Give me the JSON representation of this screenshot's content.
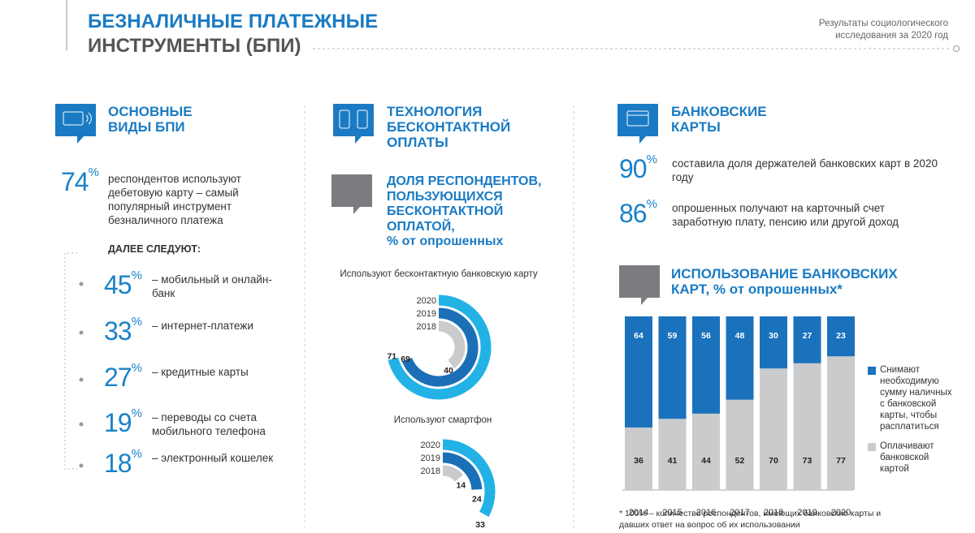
{
  "header": {
    "title": [
      "БЕЗНАЛИЧНЫЕ ПЛАТЕЖНЫЕ",
      "ИНСТРУМЕНТЫ (БПИ)"
    ],
    "source": [
      "Результаты социологического",
      "исследования за 2020 год"
    ]
  },
  "main_types": {
    "heading": [
      "ОСНОВНЫЕ",
      "ВИДЫ БПИ"
    ],
    "lead": {
      "value": 74,
      "unit": "%",
      "text": "респондентов используют дебетовую карту – самый популярный инструмент безналичного платежа"
    },
    "next_label": "ДАЛЕЕ СЛЕДУЮТ:",
    "items": [
      {
        "value": 45,
        "unit": "%",
        "text": "– мобильный и онлайн-банк"
      },
      {
        "value": 33,
        "unit": "%",
        "text": "– интернет-платежи"
      },
      {
        "value": 27,
        "unit": "%",
        "text": "– кредитные карты"
      },
      {
        "value": 19,
        "unit": "%",
        "text": "– переводы со счета мобильного телефона"
      },
      {
        "value": 18,
        "unit": "%",
        "text": "– электронный кошелек"
      }
    ]
  },
  "contactless": {
    "heading": [
      "ТЕХНОЛОГИЯ",
      "БЕСКОНТАКТНОЙ",
      "ОПЛАТЫ"
    ],
    "subheading": [
      "ДОЛЯ РЕСПОНДЕНТОВ,",
      "ПОЛЬЗУЮЩИХСЯ",
      "БЕСКОНТАКТНОЙ",
      "ОПЛАТОЙ,",
      "% от опрошенных"
    ]
  },
  "bank_cards": {
    "heading": [
      "БАНКОВСКИЕ",
      "КАРТЫ"
    ],
    "facts": [
      {
        "value": 90,
        "unit": "%",
        "text": "составила доля держателей банковских карт в 2020 году"
      },
      {
        "value": 86,
        "unit": "%",
        "text": "опрошенных получают на карточный счет заработную плату, пенсию или другой доход"
      }
    ],
    "footnote": "* 100% – количество респондентов, имеющих банковские карты и давших ответ на вопрос об их использовании"
  },
  "chart_data": [
    {
      "type": "radial_bar",
      "title": "Используют бесконтактную банковскую карту",
      "categories": [
        "2020",
        "2019",
        "2018"
      ],
      "values": [
        71,
        69,
        40
      ],
      "colors": [
        "#22b2e6",
        "#1b6fb7",
        "#c9cbcd"
      ]
    },
    {
      "type": "radial_bar",
      "title": "Используют смартфон",
      "categories": [
        "2020",
        "2019",
        "2018"
      ],
      "values": [
        33,
        24,
        14
      ],
      "colors": [
        "#22b2e6",
        "#1b6fb7",
        "#c9cbcd"
      ]
    },
    {
      "type": "bar",
      "stacked": true,
      "title": [
        "ИСПОЛЬЗОВАНИЕ БАНКОВСКИХ",
        "КАРТ, % от опрошенных*"
      ],
      "categories": [
        "2014",
        "2015",
        "2016",
        "2017",
        "2018",
        "2019",
        "2020"
      ],
      "ylim": [
        0,
        100
      ],
      "series": [
        {
          "name": "Оплачивают банковской картой",
          "color": "#c9cbcd",
          "values": [
            36,
            41,
            44,
            52,
            70,
            73,
            77
          ]
        },
        {
          "name": "Снимают необходимую сумму наличных с банковской карты, чтобы расплатиться",
          "color": "#1b72bc",
          "values": [
            64,
            59,
            56,
            48,
            30,
            27,
            23
          ]
        }
      ]
    }
  ]
}
